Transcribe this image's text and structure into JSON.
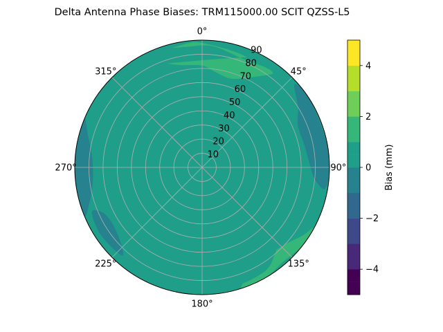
{
  "chart_data": {
    "type": "polar-contour",
    "title": "Delta Antenna Phase Biases: TRM115000.00    SCIT QZSS-L5",
    "angular_axis": {
      "direction": "clockwise",
      "zero_location": "top",
      "tick_labels": [
        {
          "deg": 0,
          "label": "0°"
        },
        {
          "deg": 45,
          "label": "45°"
        },
        {
          "deg": 90,
          "label": "90°"
        },
        {
          "deg": 135,
          "label": "135°"
        },
        {
          "deg": 180,
          "label": "180°"
        },
        {
          "deg": 225,
          "label": "225°"
        },
        {
          "deg": 270,
          "label": "270°"
        },
        {
          "deg": 315,
          "label": "315°"
        }
      ]
    },
    "radial_axis": {
      "range": [
        0,
        90
      ],
      "label_angle_deg": 22.5,
      "tick_labels": [
        {
          "value": 10,
          "label": "10"
        },
        {
          "value": 20,
          "label": "20"
        },
        {
          "value": 30,
          "label": "30"
        },
        {
          "value": 40,
          "label": "40"
        },
        {
          "value": 50,
          "label": "50"
        },
        {
          "value": 60,
          "label": "60"
        },
        {
          "value": 70,
          "label": "70"
        },
        {
          "value": 80,
          "label": "80"
        },
        {
          "value": 90,
          "label": "90"
        }
      ]
    },
    "grid": true,
    "colorbar": {
      "label": "Bias (mm)",
      "range": [
        -5,
        5
      ],
      "level_step": 0.5,
      "colormap": "viridis",
      "tick_labels": [
        {
          "value": -4,
          "label": "−4"
        },
        {
          "value": -2,
          "label": "−2"
        },
        {
          "value": 0,
          "label": "0"
        },
        {
          "value": 2,
          "label": "2"
        },
        {
          "value": 4,
          "label": "4"
        }
      ],
      "level_colors": [
        "#440154",
        "#482878",
        "#3e4989",
        "#31688e",
        "#26828e",
        "#1f9e89",
        "#35b779",
        "#6ece58",
        "#b5de2b",
        "#fde725"
      ]
    },
    "background_level_value": 0.25,
    "regions": [
      {
        "value": 1.25,
        "points": [
          [
            -8,
            88
          ],
          [
            0,
            88
          ],
          [
            15,
            85
          ],
          [
            25,
            84
          ],
          [
            38,
            86
          ],
          [
            28,
            72
          ],
          [
            18,
            66
          ],
          [
            8,
            68
          ],
          [
            0,
            72
          ],
          [
            -12,
            74
          ],
          [
            -22,
            80
          ],
          [
            -30,
            88
          ]
        ]
      },
      {
        "value": 1.25,
        "points": [
          [
            118,
            90
          ],
          [
            128,
            90
          ],
          [
            140,
            88
          ],
          [
            150,
            90
          ],
          [
            162,
            90
          ],
          [
            155,
            82
          ],
          [
            145,
            78
          ],
          [
            133,
            80
          ],
          [
            124,
            86
          ]
        ]
      },
      {
        "value": 0.75,
        "points": [
          [
            -35,
            90
          ],
          [
            -20,
            88
          ],
          [
            -8,
            86
          ],
          [
            5,
            86
          ],
          [
            20,
            82
          ],
          [
            35,
            84
          ],
          [
            38,
            78
          ],
          [
            32,
            64
          ],
          [
            26,
            52
          ],
          [
            30,
            38
          ],
          [
            45,
            36
          ],
          [
            70,
            34
          ],
          [
            85,
            36
          ],
          [
            90,
            40
          ],
          [
            60,
            44
          ],
          [
            45,
            48
          ],
          [
            40,
            60
          ],
          [
            45,
            72
          ],
          [
            50,
            76
          ],
          [
            42,
            84
          ],
          [
            30,
            90
          ],
          [
            -40,
            90
          ],
          [
            -45,
            80
          ],
          [
            -50,
            74
          ],
          [
            -42,
            78
          ]
        ]
      },
      {
        "value": 0.75,
        "points": [
          [
            40,
            6
          ],
          [
            80,
            14
          ],
          [
            110,
            26
          ],
          [
            125,
            38
          ],
          [
            110,
            50
          ],
          [
            118,
            62
          ],
          [
            130,
            72
          ],
          [
            140,
            80
          ],
          [
            150,
            86
          ],
          [
            170,
            88
          ],
          [
            190,
            88
          ],
          [
            210,
            86
          ],
          [
            222,
            72
          ],
          [
            218,
            56
          ],
          [
            205,
            40
          ],
          [
            190,
            30
          ],
          [
            175,
            22
          ],
          [
            160,
            16
          ],
          [
            130,
            10
          ],
          [
            100,
            8
          ],
          [
            70,
            6
          ]
        ]
      },
      {
        "value": -0.25,
        "points": [
          [
            48,
            88
          ],
          [
            58,
            90
          ],
          [
            80,
            90
          ],
          [
            92,
            90
          ],
          [
            100,
            88
          ],
          [
            96,
            80
          ],
          [
            88,
            76
          ],
          [
            78,
            74
          ],
          [
            66,
            74
          ],
          [
            58,
            80
          ]
        ]
      },
      {
        "value": -0.25,
        "points": [
          [
            248,
            90
          ],
          [
            265,
            90
          ],
          [
            275,
            90
          ],
          [
            292,
            90
          ],
          [
            286,
            84
          ],
          [
            275,
            78
          ],
          [
            262,
            78
          ],
          [
            252,
            84
          ]
        ]
      },
      {
        "value": -0.25,
        "points": [
          [
            222,
            84
          ],
          [
            236,
            86
          ],
          [
            248,
            84
          ],
          [
            244,
            76
          ],
          [
            232,
            76
          ]
        ]
      }
    ]
  }
}
